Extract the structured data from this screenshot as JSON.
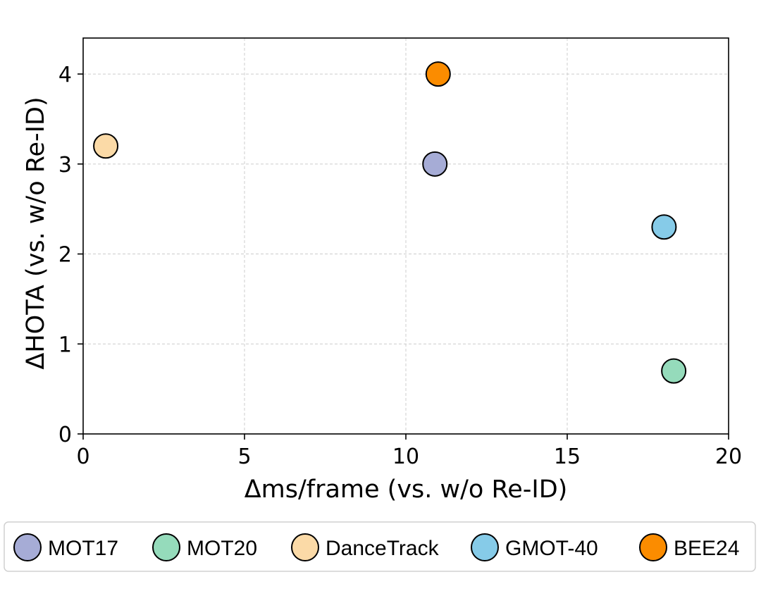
{
  "chart_data": {
    "type": "scatter",
    "xlabel": "Δms/frame (vs. w/o Re-ID)",
    "ylabel": "ΔHOTA (vs. w/o Re-ID)",
    "xlim": [
      0,
      20
    ],
    "ylim": [
      0,
      4.4
    ],
    "xticks": [
      0,
      5,
      10,
      15,
      20
    ],
    "yticks": [
      0,
      1,
      2,
      3,
      4
    ],
    "grid": true,
    "legend_position": "bottom",
    "series": [
      {
        "name": "MOT17",
        "color": "#a6acd6",
        "x": [
          10.9
        ],
        "y": [
          3.0
        ]
      },
      {
        "name": "MOT20",
        "color": "#95dbbb",
        "x": [
          18.3
        ],
        "y": [
          0.7
        ]
      },
      {
        "name": "DanceTrack",
        "color": "#fbdaa7",
        "x": [
          0.7
        ],
        "y": [
          3.2
        ]
      },
      {
        "name": "GMOT-40",
        "color": "#86cbe8",
        "x": [
          18.0
        ],
        "y": [
          2.3
        ]
      },
      {
        "name": "BEE24",
        "color": "#fb8c00",
        "x": [
          11.0
        ],
        "y": [
          4.0
        ]
      }
    ]
  }
}
